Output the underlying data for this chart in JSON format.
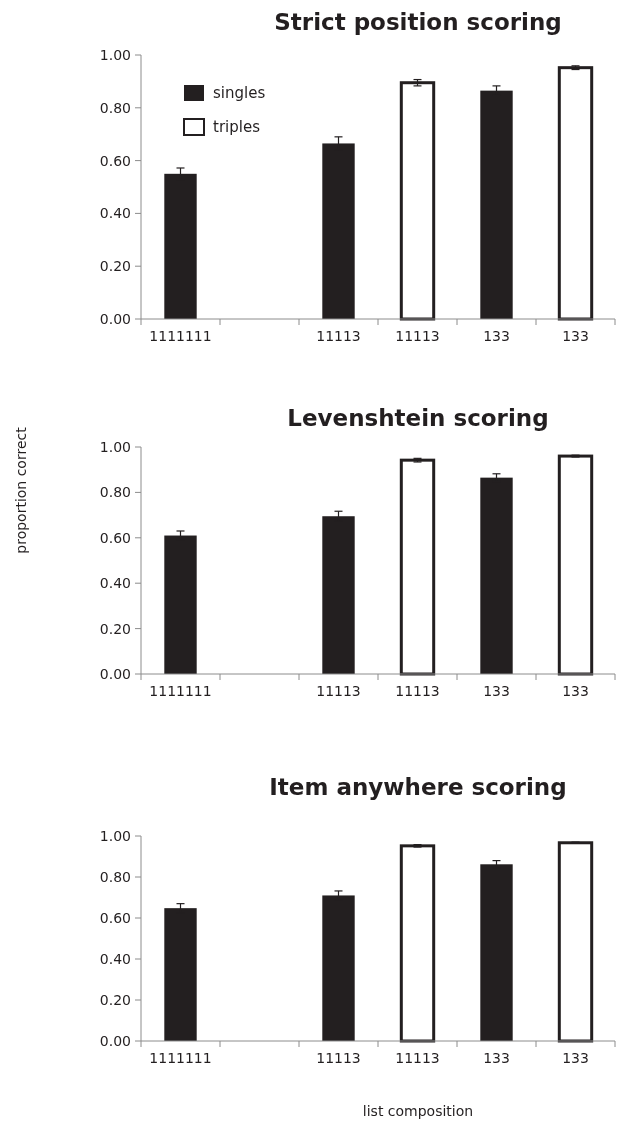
{
  "chart_data": [
    {
      "type": "bar",
      "title": "Strict position scoring",
      "categories": [
        "1111111",
        null,
        "11113",
        "11113",
        "133",
        "133"
      ],
      "series": [
        {
          "name": "singles",
          "color": "#231f20",
          "values": [
            0.55,
            null,
            0.665,
            null,
            0.865,
            null
          ],
          "errors": [
            0.022,
            null,
            0.025,
            null,
            0.018,
            null
          ]
        },
        {
          "name": "triples",
          "color": "#ffffff",
          "values": [
            null,
            null,
            null,
            0.895,
            null,
            0.952
          ],
          "errors": [
            null,
            null,
            null,
            0.012,
            null,
            0.007
          ]
        }
      ],
      "ylim": [
        0,
        1
      ],
      "yticks": [
        {
          "value": 0,
          "label": "0.00"
        },
        {
          "value": 0.2,
          "label": "0.20"
        },
        {
          "value": 0.4,
          "label": "0.40"
        },
        {
          "value": 0.6,
          "label": "0.60"
        },
        {
          "value": 0.8,
          "label": "0.80"
        },
        {
          "value": 1,
          "label": "1.00"
        }
      ],
      "grid": false,
      "legend": "top left"
    },
    {
      "type": "bar",
      "title": "Levenshtein scoring",
      "ylabel": "proportion correct",
      "categories": [
        "1111111",
        null,
        "11113",
        "11113",
        "133",
        "133"
      ],
      "series": [
        {
          "color": "#231f20",
          "values": [
            0.61,
            null,
            0.695,
            null,
            0.865,
            null
          ],
          "errors": [
            0.02,
            null,
            0.022,
            null,
            0.017,
            null
          ]
        },
        {
          "color": "#ffffff",
          "values": [
            null,
            null,
            null,
            0.942,
            null,
            0.96
          ],
          "errors": [
            null,
            null,
            null,
            0.008,
            null,
            0.004
          ]
        }
      ],
      "ylim": [
        0,
        1
      ],
      "yticks": [
        {
          "value": 0,
          "label": "0.00"
        },
        {
          "value": 0.2,
          "label": "0.20"
        },
        {
          "value": 0.4,
          "label": "0.40"
        },
        {
          "value": 0.6,
          "label": "0.60"
        },
        {
          "value": 0.8,
          "label": "0.80"
        },
        {
          "value": 1,
          "label": "1.00"
        }
      ],
      "grid": false,
      "legend": false
    },
    {
      "type": "bar",
      "title": "Item anywhere scoring",
      "xlabel": "list composition",
      "categories": [
        "1111111",
        null,
        "11113",
        "11113",
        "133",
        "133"
      ],
      "series": [
        {
          "color": "#231f20",
          "values": [
            0.648,
            null,
            0.71,
            null,
            0.862,
            null
          ],
          "errors": [
            0.022,
            null,
            0.022,
            null,
            0.018,
            null
          ]
        },
        {
          "color": "#ffffff",
          "values": [
            null,
            null,
            null,
            0.952,
            null,
            0.967
          ],
          "errors": [
            null,
            null,
            null,
            0.006,
            null,
            0.003
          ]
        }
      ],
      "ylim": [
        0,
        1
      ],
      "yticks": [
        {
          "value": 0,
          "label": "0.00"
        },
        {
          "value": 0.2,
          "label": "0.20"
        },
        {
          "value": 0.4,
          "label": "0.40"
        },
        {
          "value": 0.6,
          "label": "0.60"
        },
        {
          "value": 0.8,
          "label": "0.80"
        },
        {
          "value": 1,
          "label": "1.00"
        }
      ],
      "grid": false,
      "legend": false
    }
  ]
}
